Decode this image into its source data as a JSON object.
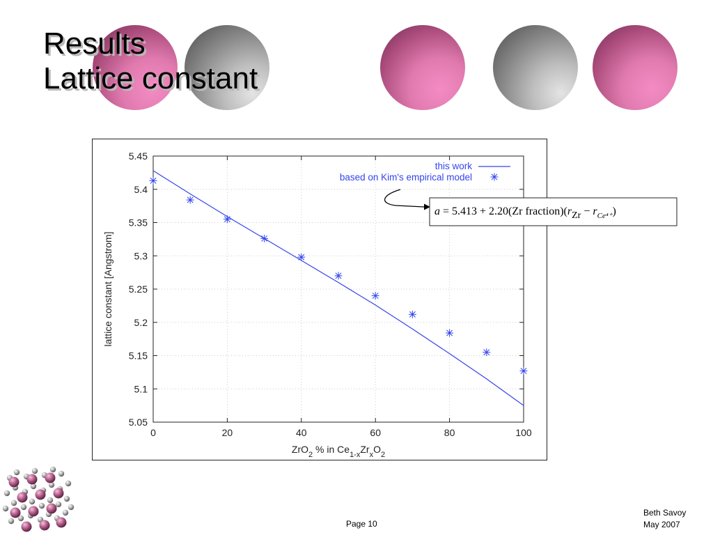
{
  "slide": {
    "title_line1": "Results",
    "title_line2": "Lattice constant",
    "page_label": "Page 10",
    "author": "Beth Savoy",
    "date": "May 2007"
  },
  "colors": {
    "series": "#3344ee",
    "axis": "#222222",
    "grid": "#cccccc"
  },
  "chart_data": {
    "type": "line",
    "title": "",
    "xlabel_parts": [
      "ZrO",
      "2",
      " % in Ce",
      "1-x",
      "Zr",
      "x",
      "O",
      "2"
    ],
    "ylabel": "lattice constant [Angstrom]",
    "xlim": [
      0,
      100
    ],
    "ylim": [
      5.05,
      5.45
    ],
    "x_ticks": [
      0,
      20,
      40,
      60,
      80,
      100
    ],
    "y_ticks": [
      5.05,
      5.1,
      5.15,
      5.2,
      5.25,
      5.3,
      5.35,
      5.4,
      5.45
    ],
    "grid": true,
    "legend_position": "top-right",
    "series": [
      {
        "name": "this work",
        "style": "line",
        "x": [
          0,
          10,
          20,
          30,
          40,
          50,
          60,
          70,
          80,
          90,
          100
        ],
        "y": [
          5.428,
          5.393,
          5.359,
          5.326,
          5.293,
          5.26,
          5.226,
          5.19,
          5.153,
          5.115,
          5.075
        ]
      },
      {
        "name": "based on Kim's empirical model",
        "style": "asterisk",
        "x": [
          0,
          10,
          20,
          30,
          40,
          50,
          60,
          70,
          80,
          90,
          100
        ],
        "y": [
          5.413,
          5.384,
          5.355,
          5.326,
          5.298,
          5.27,
          5.24,
          5.212,
          5.184,
          5.155,
          5.127
        ]
      }
    ],
    "annotation": {
      "parts": [
        {
          "t": "a",
          "s": "it"
        },
        {
          "t": " = 5.413 + 2.20(Zr fraction)(",
          "s": "n"
        },
        {
          "t": "r",
          "s": "it"
        },
        {
          "t": "Zr",
          "s": "sub"
        },
        {
          "t": " − ",
          "s": "n"
        },
        {
          "t": "r",
          "s": "it"
        },
        {
          "t": "Ce⁴⁺",
          "s": "subit"
        },
        {
          "t": ")",
          "s": "n"
        }
      ]
    }
  }
}
